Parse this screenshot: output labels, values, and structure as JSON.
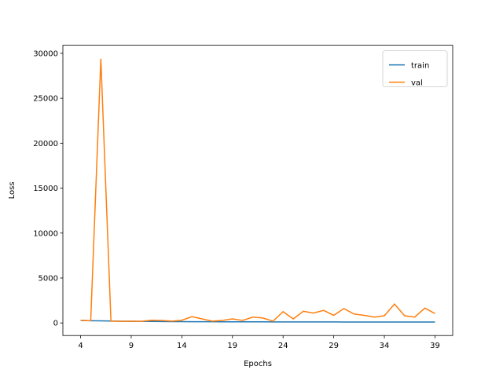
{
  "chart_data": {
    "type": "line",
    "x_label": "Epochs",
    "y_label": "Loss",
    "x": [
      4,
      5,
      6,
      7,
      8,
      9,
      10,
      11,
      12,
      13,
      14,
      15,
      16,
      17,
      18,
      19,
      20,
      21,
      22,
      23,
      24,
      25,
      26,
      27,
      28,
      29,
      30,
      31,
      32,
      33,
      34,
      35,
      36,
      37,
      38,
      39
    ],
    "series": [
      {
        "name": "train",
        "color": "#1f77b4",
        "values": [
          280,
          250,
          230,
          210,
          195,
          185,
          175,
          165,
          155,
          150,
          145,
          140,
          135,
          132,
          130,
          128,
          125,
          122,
          120,
          118,
          116,
          115,
          113,
          112,
          110,
          110,
          108,
          107,
          106,
          105,
          104,
          103,
          102,
          101,
          100,
          100
        ]
      },
      {
        "name": "val",
        "color": "#ff7f0e",
        "values": [
          300,
          250,
          29400,
          200,
          180,
          200,
          180,
          300,
          280,
          200,
          300,
          700,
          450,
          200,
          280,
          450,
          280,
          650,
          550,
          200,
          1250,
          450,
          1300,
          1100,
          1400,
          850,
          1600,
          1000,
          850,
          650,
          800,
          2100,
          800,
          650,
          1650,
          1050
        ]
      }
    ],
    "xlim": [
      2.25,
      40.75
    ],
    "ylim": [
      -1400,
      30900
    ],
    "xticks": [
      4,
      9,
      14,
      19,
      24,
      29,
      34,
      39
    ],
    "yticks": [
      0,
      5000,
      10000,
      15000,
      20000,
      25000,
      30000
    ],
    "legend": "upper right"
  }
}
